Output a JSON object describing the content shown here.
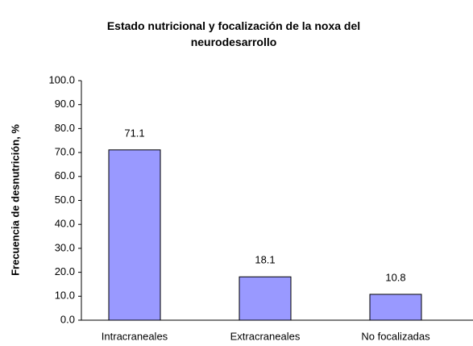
{
  "chart_data": {
    "type": "bar",
    "title": "Estado nutricional y focalización de la noxa del neurodesarrollo",
    "ylabel": "Frecuencia de desnutrición, %",
    "categories": [
      "Intracraneales",
      "Extracraneales",
      "No focalizadas"
    ],
    "values": [
      71.1,
      18.1,
      10.8
    ],
    "color": "#9999ff",
    "ylim": [
      0,
      100
    ],
    "yticks": [
      {
        "value": 0,
        "label": "0.0"
      },
      {
        "value": 10,
        "label": "10.0"
      },
      {
        "value": 20,
        "label": "20.0"
      },
      {
        "value": 30,
        "label": "30.0"
      },
      {
        "value": 40,
        "label": "40.0"
      },
      {
        "value": 50,
        "label": "50.0"
      },
      {
        "value": 60,
        "label": "60.0"
      },
      {
        "value": 70,
        "label": "70.0"
      },
      {
        "value": 80,
        "label": "80.0"
      },
      {
        "value": 90,
        "label": "90.0"
      },
      {
        "value": 100,
        "label": "100.0"
      }
    ],
    "grid": false
  }
}
